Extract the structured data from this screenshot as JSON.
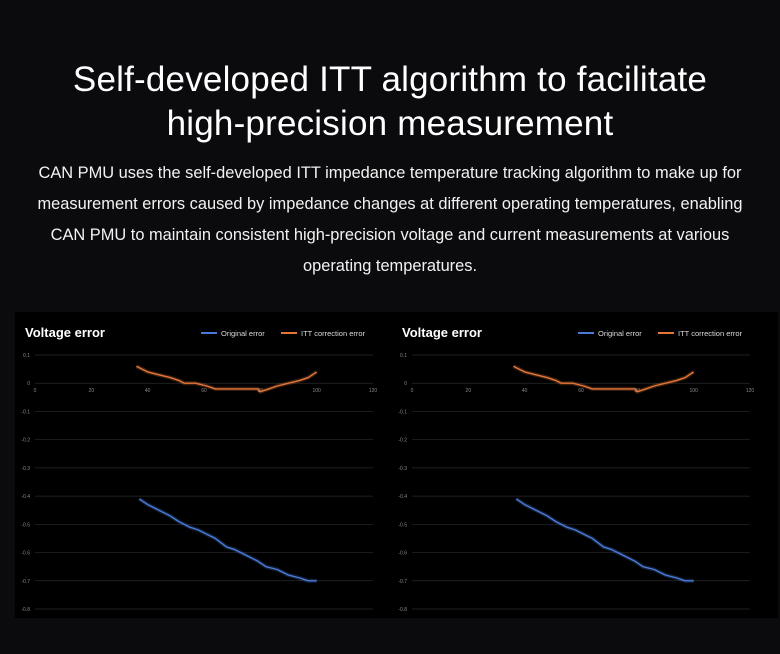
{
  "header": {
    "title_line1": "Self-developed ITT algorithm to facilitate",
    "title_line2": "high-precision measurement",
    "description": "CAN PMU uses the self-developed ITT impedance temperature tracking algorithm to make up for measurement errors caused by impedance changes at different operating temperatures, enabling CAN PMU to maintain consistent high-precision voltage and current measurements at various operating temperatures."
  },
  "colors": {
    "background": "#0b0a0d",
    "panel": "#000000",
    "grid": "#2a2a2a",
    "original_error": "#4a7ad8",
    "itt_correction_error": "#e5763a"
  },
  "chart_data": [
    {
      "type": "line",
      "title": "Voltage error",
      "xlabel": "",
      "ylabel": "",
      "xlim": [
        0,
        120
      ],
      "ylim": [
        -0.8,
        0.1
      ],
      "x_ticks": [
        0,
        20,
        40,
        60,
        80,
        100,
        120
      ],
      "y_ticks": [
        0.1,
        0,
        -0.1,
        -0.2,
        -0.3,
        -0.4,
        -0.5,
        -0.6,
        -0.7,
        -0.8
      ],
      "x_tick_labels": [
        "0",
        "20",
        "40",
        "60",
        "80",
        "100",
        "120"
      ],
      "y_tick_labels": [
        "0.1",
        "0",
        "-0.1",
        "-0.2",
        "-0.3",
        "-0.4",
        "-0.5",
        "-0.6",
        "-0.7",
        "-0.8"
      ],
      "grid": true,
      "legend_position": "top-right",
      "series": [
        {
          "name": "Original error",
          "color": "#4a7ad8",
          "x": [
            37,
            40,
            44,
            48,
            51,
            55,
            58,
            62,
            64,
            68,
            71,
            75,
            79,
            82,
            86,
            90,
            94,
            97,
            100
          ],
          "y": [
            -0.41,
            -0.43,
            -0.45,
            -0.47,
            -0.49,
            -0.51,
            -0.52,
            -0.54,
            -0.55,
            -0.58,
            -0.59,
            -0.61,
            -0.63,
            -0.65,
            -0.66,
            -0.68,
            -0.69,
            -0.7,
            -0.7
          ]
        },
        {
          "name": "ITT correction error",
          "color": "#e5763a",
          "x": [
            36,
            38,
            40,
            44,
            48,
            51,
            53,
            57,
            61,
            64,
            67,
            71,
            75,
            79,
            80,
            83,
            86,
            90,
            94,
            97,
            100
          ],
          "y": [
            0.06,
            0.05,
            0.04,
            0.03,
            0.02,
            0.01,
            0.0,
            -0.0,
            -0.01,
            -0.02,
            -0.02,
            -0.02,
            -0.02,
            -0.02,
            -0.03,
            -0.02,
            -0.01,
            0.0,
            0.01,
            0.02,
            0.04
          ]
        }
      ]
    },
    {
      "type": "line",
      "title": "Voltage error",
      "xlabel": "",
      "ylabel": "",
      "xlim": [
        0,
        120
      ],
      "ylim": [
        -0.8,
        0.1
      ],
      "x_ticks": [
        0,
        20,
        40,
        60,
        80,
        100,
        120
      ],
      "y_ticks": [
        0.1,
        0,
        -0.1,
        -0.2,
        -0.3,
        -0.4,
        -0.5,
        -0.6,
        -0.7,
        -0.8
      ],
      "x_tick_labels": [
        "0",
        "20",
        "40",
        "60",
        "80",
        "100",
        "120"
      ],
      "y_tick_labels": [
        "0.1",
        "0",
        "-0.1",
        "-0.2",
        "-0.3",
        "-0.4",
        "-0.5",
        "-0.6",
        "-0.7",
        "-0.8"
      ],
      "grid": true,
      "legend_position": "top-right",
      "series": [
        {
          "name": "Original error",
          "color": "#4a7ad8",
          "x": [
            37,
            40,
            44,
            48,
            51,
            55,
            58,
            62,
            64,
            68,
            71,
            75,
            79,
            82,
            86,
            90,
            94,
            97,
            100
          ],
          "y": [
            -0.41,
            -0.43,
            -0.45,
            -0.47,
            -0.49,
            -0.51,
            -0.52,
            -0.54,
            -0.55,
            -0.58,
            -0.59,
            -0.61,
            -0.63,
            -0.65,
            -0.66,
            -0.68,
            -0.69,
            -0.7,
            -0.7
          ]
        },
        {
          "name": "ITT correction error",
          "color": "#e5763a",
          "x": [
            36,
            38,
            40,
            44,
            48,
            51,
            53,
            57,
            61,
            64,
            67,
            71,
            75,
            79,
            80,
            83,
            86,
            90,
            94,
            97,
            100
          ],
          "y": [
            0.06,
            0.05,
            0.04,
            0.03,
            0.02,
            0.01,
            0.0,
            -0.0,
            -0.01,
            -0.02,
            -0.02,
            -0.02,
            -0.02,
            -0.02,
            -0.03,
            -0.02,
            -0.01,
            0.0,
            0.01,
            0.02,
            0.04
          ]
        }
      ]
    }
  ]
}
